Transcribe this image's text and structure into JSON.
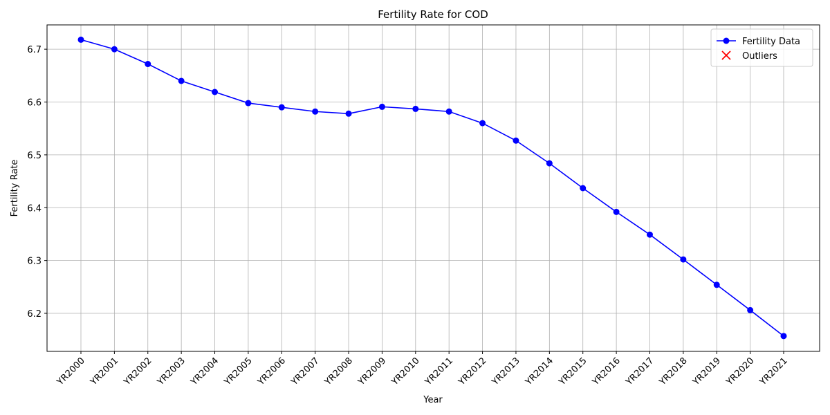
{
  "chart_data": {
    "type": "line",
    "title": "Fertility Rate for COD",
    "x_label": "Year",
    "y_label": "Fertility Rate",
    "categories": [
      "YR2000",
      "YR2001",
      "YR2002",
      "YR2003",
      "YR2004",
      "YR2005",
      "YR2006",
      "YR2007",
      "YR2008",
      "YR2009",
      "YR2010",
      "YR2011",
      "YR2012",
      "YR2013",
      "YR2014",
      "YR2015",
      "YR2016",
      "YR2017",
      "YR2018",
      "YR2019",
      "YR2020",
      "YR2021"
    ],
    "series": [
      {
        "name": "Fertility Data",
        "color": "#0000ff",
        "marker": "o",
        "values": [
          6.718,
          6.7,
          6.672,
          6.64,
          6.619,
          6.598,
          6.59,
          6.582,
          6.578,
          6.591,
          6.587,
          6.582,
          6.56,
          6.527,
          6.484,
          6.437,
          6.392,
          6.349,
          6.302,
          6.254,
          6.206,
          6.157
        ]
      },
      {
        "name": "Outliers",
        "color": "#ff0000",
        "marker": "x",
        "values": [
          null,
          null,
          null,
          null,
          null,
          null,
          null,
          null,
          null,
          null,
          null,
          null,
          null,
          null,
          null,
          null,
          null,
          null,
          null,
          null,
          null,
          null
        ]
      }
    ],
    "ylim": [
      6.128,
      6.746
    ],
    "yticks": [
      6.2,
      6.3,
      6.4,
      6.5,
      6.6,
      6.7
    ],
    "grid": true,
    "legend": "upper right"
  }
}
